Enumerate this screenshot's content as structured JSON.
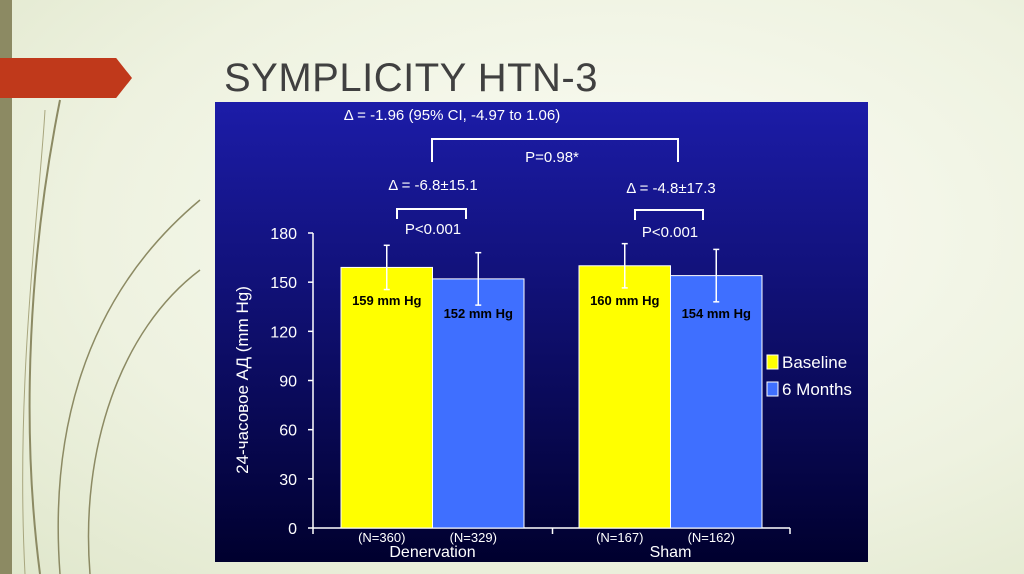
{
  "slide": {
    "title": "SYMPLICITY HTN-3"
  },
  "colors": {
    "accent_arrow": "#c0391b",
    "baseline": "#ffff00",
    "six_months": "#3f6fff",
    "chart_bg_top": "#1c1ca8",
    "chart_bg_bottom": "#00002e"
  },
  "chart_data": {
    "type": "bar",
    "ylabel": "24-часовое АД (mm Hg)",
    "ylim": [
      0,
      180
    ],
    "yticks": [
      "0",
      "30",
      "60",
      "90",
      "120",
      "150",
      "180"
    ],
    "categories": [
      "Denervation",
      "Sham"
    ],
    "legend_position": "right",
    "series": [
      {
        "name": "Baseline",
        "values": [
          159,
          160
        ],
        "errors": [
          13.5,
          13.5
        ],
        "labels": [
          "159 mm Hg",
          "160 mm Hg"
        ],
        "n_labels": [
          "(N=360)",
          "(N=167)"
        ]
      },
      {
        "name": "6 Months",
        "values": [
          152,
          154
        ],
        "errors": [
          16,
          16
        ],
        "labels": [
          "152 mm Hg",
          "154 mm Hg"
        ],
        "n_labels": [
          "(N=329)",
          "(N=162)"
        ]
      }
    ],
    "annotations": {
      "overall_delta": "Δ = -1.96 (95% CI, -4.97 to 1.06)",
      "overall_p": "P=0.98*",
      "group_deltas": [
        "Δ = -6.8±15.1",
        "Δ = -4.8±17.3"
      ],
      "group_p": [
        "P<0.001",
        "P<0.001"
      ]
    }
  }
}
